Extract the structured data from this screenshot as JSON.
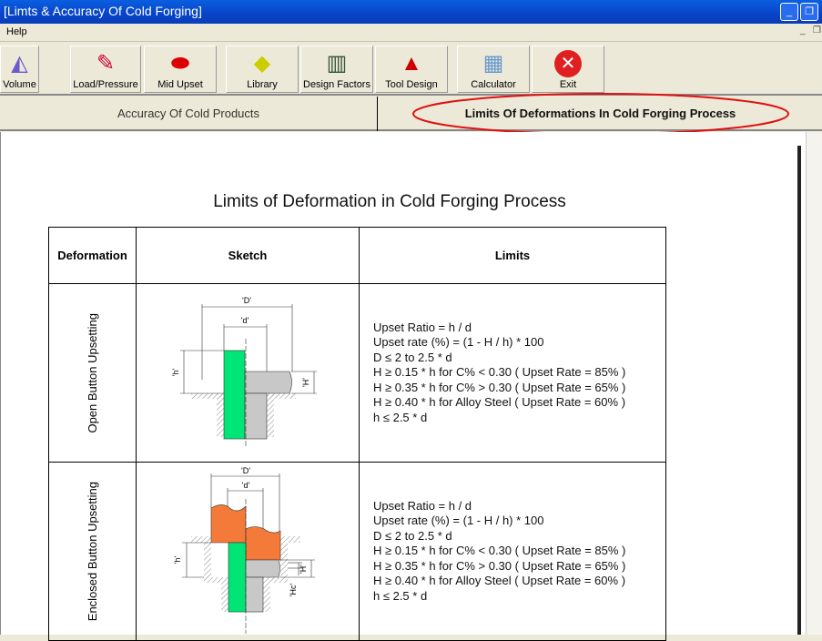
{
  "window": {
    "title": "[Limts & Accuracy Of Cold Forging]"
  },
  "menu": {
    "items": [
      "Help"
    ]
  },
  "toolbar": [
    {
      "label": "Volume",
      "icon": "volume-icon"
    },
    {
      "label": "Load/Pressure",
      "icon": "load-pressure-icon"
    },
    {
      "label": "Mid Upset",
      "icon": "mid-upset-icon"
    },
    {
      "label": "Library",
      "icon": "library-icon"
    },
    {
      "label": "Design Factors",
      "icon": "design-factors-icon"
    },
    {
      "label": "Tool Design",
      "icon": "tool-design-icon"
    },
    {
      "label": "Calculator",
      "icon": "calculator-icon"
    },
    {
      "label": "Exit",
      "icon": "exit-icon"
    }
  ],
  "tabs": [
    {
      "label": "Accuracy Of Cold Products",
      "active": false
    },
    {
      "label": "Limits Of Deformations In Cold Forging Process",
      "active": true
    }
  ],
  "document": {
    "title": "Limits of Deformation in Cold Forging Process",
    "headers": [
      "Deformation",
      "Sketch",
      "Limits"
    ],
    "rows": [
      {
        "deformation": "Open Button Upsetting",
        "sketch_labels": {
          "D": "'D'",
          "d": "'d'",
          "h": "'h'",
          "H": "'H'"
        },
        "limits": [
          "Upset Ratio = h / d",
          "Upset rate (%) = (1 - H / h) * 100",
          "D ≤ 2 to 2.5 * d",
          "H ≥ 0.15 * h for C% < 0.30  ( Upset Rate = 85% )",
          "H ≥ 0.35 * h for C% > 0.30  ( Upset Rate = 65% )",
          "H ≥ 0.40 * h for Alloy Steel  ( Upset Rate = 60% )",
          "h ≤ 2.5 * d"
        ]
      },
      {
        "deformation": "Enclosed Button Upsetting",
        "sketch_labels": {
          "D": "'D'",
          "d": "'d'",
          "h": "'h'",
          "H": "'H'",
          "Hc": "'Hc'"
        },
        "limits": [
          "Upset Ratio = h / d",
          "Upset rate (%) = (1 - H / h) * 100",
          "D ≤ 2 to 2.5 * d",
          "H ≥ 0.15 * h for C% < 0.30  ( Upset Rate = 85% )",
          "H ≥ 0.35 * h for C% > 0.30  ( Upset Rate = 65% )",
          "H ≥ 0.40 * h for Alloy Steel  ( Upset Rate = 60% )",
          "h ≤ 2.5 * d"
        ]
      }
    ]
  },
  "colors": {
    "titlebar": "#0a4fd8",
    "highlight_ellipse": "#e01010",
    "punch": "#00e676",
    "workpiece": "#c8c8c8",
    "die_material": "#f47a3a"
  }
}
